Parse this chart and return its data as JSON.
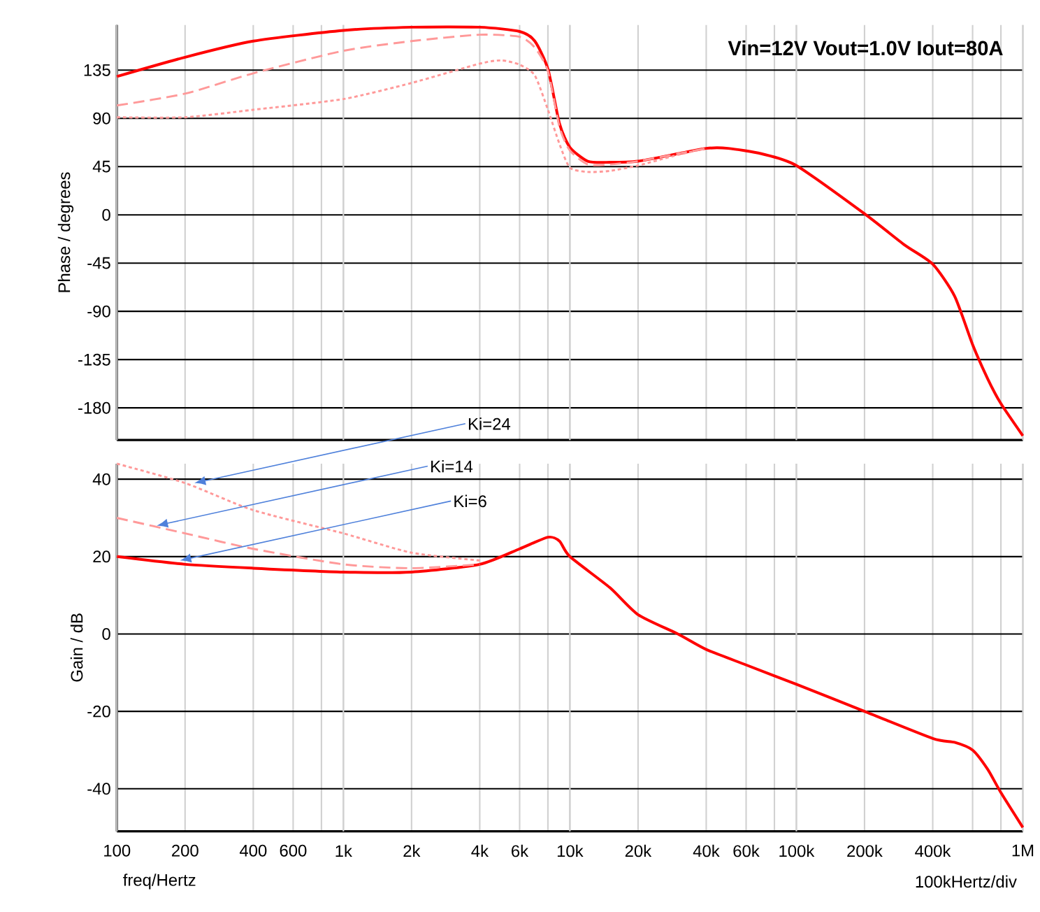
{
  "chart_data": [
    {
      "type": "line",
      "title": "Vin=12V Vout=1.0V Iout=80A",
      "ylabel": "Phase / degrees",
      "log": "x",
      "grid": true,
      "tick_labels": "y",
      "xlim": [
        100,
        1000000
      ],
      "ylim": [
        -210,
        177
      ],
      "xticks": [
        100,
        200,
        400,
        600,
        800,
        1000,
        2000,
        4000,
        6000,
        8000,
        10000,
        20000,
        40000,
        60000,
        80000,
        100000,
        200000,
        400000,
        600000,
        800000,
        1000000
      ],
      "yticks": [
        -180,
        -135,
        -90,
        -45,
        0,
        45,
        90,
        135
      ],
      "series": [
        {
          "color": "#ff0000",
          "line_style": "solid",
          "x": [
            100,
            200,
            400,
            1000,
            2000,
            4000,
            6000,
            7000,
            8000,
            9000,
            10000,
            12000,
            15000,
            20000,
            30000,
            40000,
            50000,
            70000,
            100000,
            200000,
            300000,
            400000,
            500000,
            600000,
            700000,
            800000,
            1000000
          ],
          "values": [
            129,
            147,
            162,
            172,
            175,
            175,
            171,
            162,
            136,
            85,
            63,
            50,
            49,
            50,
            57,
            62,
            62,
            57,
            46,
            1,
            -28,
            -46,
            -76,
            -121,
            -153,
            -176,
            -206
          ]
        },
        {
          "color": "#ff9999",
          "line_style": "dashed",
          "x": [
            100,
            200,
            400,
            1000,
            2000,
            4000,
            6000,
            7000,
            8000,
            9000,
            10000,
            12000,
            15000,
            20000,
            30000,
            40000
          ],
          "values": [
            102,
            113,
            132,
            153,
            162,
            168,
            166,
            156,
            134,
            82,
            60,
            47,
            47,
            50,
            57,
            62
          ]
        },
        {
          "color": "#ff9999",
          "line_style": "dotted",
          "x": [
            100,
            200,
            400,
            1000,
            2000,
            4000,
            5000,
            6000,
            7000,
            8000,
            9000,
            10000,
            12000,
            15000,
            20000,
            30000,
            40000
          ],
          "values": [
            91,
            91,
            98,
            108,
            123,
            141,
            144,
            140,
            130,
            98,
            66,
            44,
            40,
            41,
            46,
            56,
            62
          ]
        }
      ]
    },
    {
      "type": "line",
      "xlabel": "freq/Hertz",
      "ylabel": "Gain / dB",
      "log": "x",
      "grid": true,
      "xlim": [
        100,
        1000000
      ],
      "ylim": [
        -51,
        44
      ],
      "xticks": [
        100,
        200,
        400,
        600,
        {
          "value": 800,
          "label": null
        },
        {
          "value": 1000,
          "label": "1k"
        },
        {
          "value": 2000,
          "label": "2k"
        },
        {
          "value": 4000,
          "label": "4k"
        },
        {
          "value": 6000,
          "label": "6k"
        },
        {
          "value": 8000,
          "label": null
        },
        {
          "value": 10000,
          "label": "10k"
        },
        {
          "value": 20000,
          "label": "20k"
        },
        {
          "value": 40000,
          "label": "40k"
        },
        {
          "value": 60000,
          "label": "60k"
        },
        {
          "value": 80000,
          "label": null
        },
        {
          "value": 100000,
          "label": "100k"
        },
        {
          "value": 200000,
          "label": "200k"
        },
        {
          "value": 400000,
          "label": "400k"
        },
        {
          "value": 600000,
          "label": null
        },
        {
          "value": 800000,
          "label": null
        },
        {
          "value": 1000000,
          "label": "1M"
        }
      ],
      "yticks": [
        -40,
        -20,
        0,
        20,
        40
      ],
      "series": [
        {
          "color": "#ff0000",
          "line_style": "solid",
          "x": [
            100,
            200,
            400,
            1000,
            2000,
            4000,
            6000,
            8000,
            9000,
            10000,
            15000,
            20000,
            30000,
            40000,
            60000,
            100000,
            200000,
            400000,
            500000,
            600000,
            700000,
            800000,
            1000000
          ],
          "values": [
            20,
            18,
            17,
            16,
            16,
            18,
            22,
            25,
            24,
            20,
            12,
            5,
            0,
            -4,
            -8,
            -13,
            -20,
            -27,
            -28,
            -30,
            -35,
            -41,
            -50
          ]
        },
        {
          "color": "#ff9999",
          "line_style": "dashed",
          "x": [
            100,
            200,
            400,
            1000,
            2000,
            4000
          ],
          "values": [
            30,
            26,
            22,
            18,
            17,
            18
          ]
        },
        {
          "color": "#ff9999",
          "line_style": "dotted",
          "x": [
            100,
            200,
            400,
            1000,
            2000,
            4000
          ],
          "values": [
            44,
            39,
            32,
            26,
            21,
            19
          ]
        }
      ],
      "annotations": [
        {
          "text": "Ki=24",
          "x": 220,
          "y": 39
        },
        {
          "text": "Ki=14",
          "x": 150,
          "y": 28
        },
        {
          "text": "Ki=6",
          "x": 190,
          "y": 19
        },
        "100kHertz/div"
      ]
    }
  ]
}
